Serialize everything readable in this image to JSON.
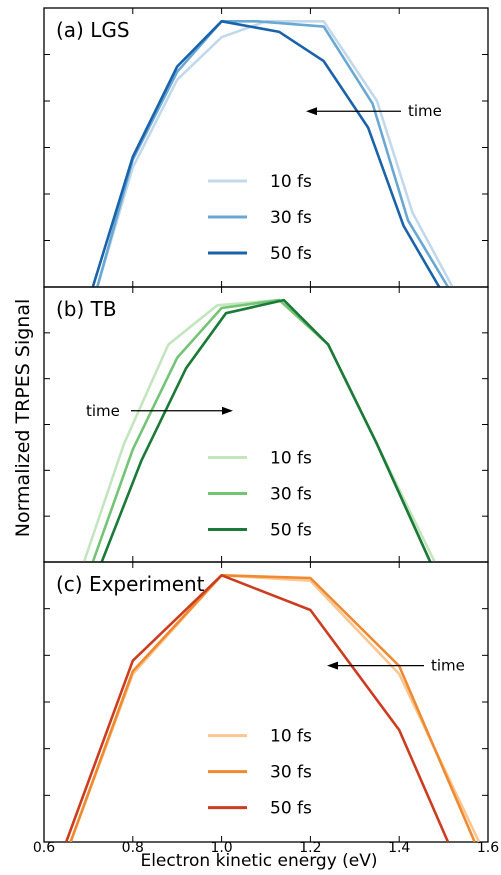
{
  "ylabel": "Normalized TRPES Signal",
  "xlabel": "Electron kinetic energy (eV)",
  "x_ticks": [
    "0.6",
    "0.8",
    "1.0",
    "1.2",
    "1.4",
    "1.6"
  ],
  "chart_data": [
    {
      "type": "line",
      "title": "(a) LGS",
      "xlim": [
        0.6,
        1.6
      ],
      "ylim": [
        0,
        1.05
      ],
      "legend": "center",
      "annotation": {
        "text": "time",
        "direction": "left"
      },
      "series": [
        {
          "name": "10 fs",
          "color": "#c2d9ec",
          "x": [
            0.72,
            0.8,
            0.9,
            1.0,
            1.1,
            1.23,
            1.35,
            1.43,
            1.52
          ],
          "y": [
            0.0,
            0.45,
            0.78,
            0.94,
            1.0,
            1.0,
            0.7,
            0.28,
            0.0
          ]
        },
        {
          "name": "30 fs",
          "color": "#6aa8d4",
          "x": [
            0.72,
            0.8,
            0.9,
            1.0,
            1.08,
            1.23,
            1.34,
            1.42,
            1.51
          ],
          "y": [
            0.0,
            0.48,
            0.81,
            1.0,
            1.0,
            0.98,
            0.69,
            0.25,
            0.0
          ]
        },
        {
          "name": "50 fs",
          "color": "#1a63aa",
          "x": [
            0.71,
            0.8,
            0.9,
            1.0,
            1.13,
            1.23,
            1.33,
            1.41,
            1.49
          ],
          "y": [
            0.0,
            0.49,
            0.83,
            1.0,
            0.96,
            0.85,
            0.6,
            0.23,
            0.0
          ]
        }
      ]
    },
    {
      "type": "line",
      "title": "(b) TB",
      "xlim": [
        0.6,
        1.6
      ],
      "ylim": [
        0,
        1.05
      ],
      "legend": "center",
      "annotation": {
        "text": "time",
        "direction": "right"
      },
      "series": [
        {
          "name": "10 fs",
          "color": "#c3e6bf",
          "x": [
            0.69,
            0.78,
            0.88,
            0.99,
            1.13,
            1.24,
            1.35,
            1.48
          ],
          "y": [
            0.0,
            0.45,
            0.83,
            0.98,
            1.0,
            0.83,
            0.45,
            0.0
          ]
        },
        {
          "name": "30 fs",
          "color": "#74c476",
          "x": [
            0.71,
            0.8,
            0.9,
            1.0,
            1.13,
            1.24,
            1.35,
            1.47
          ],
          "y": [
            0.0,
            0.43,
            0.78,
            0.97,
            1.0,
            0.83,
            0.45,
            0.0
          ]
        },
        {
          "name": "50 fs",
          "color": "#1b7a38",
          "x": [
            0.73,
            0.82,
            0.92,
            1.01,
            1.14,
            1.24,
            1.35,
            1.47
          ],
          "y": [
            0.0,
            0.39,
            0.74,
            0.95,
            1.0,
            0.83,
            0.45,
            0.0
          ]
        }
      ]
    },
    {
      "type": "line",
      "title": "(c) Experiment",
      "xlim": [
        0.6,
        1.6
      ],
      "ylim": [
        0,
        1.05
      ],
      "legend": "center",
      "annotation": {
        "text": "time",
        "direction": "left"
      },
      "series": [
        {
          "name": "10 fs",
          "color": "#fbc690",
          "x": [
            0.66,
            0.8,
            1.0,
            1.2,
            1.4,
            1.58
          ],
          "y": [
            0.0,
            0.63,
            1.0,
            0.98,
            0.63,
            0.0
          ]
        },
        {
          "name": "30 fs",
          "color": "#ef8a30",
          "x": [
            0.66,
            0.8,
            1.0,
            1.2,
            1.4,
            1.57
          ],
          "y": [
            0.0,
            0.64,
            1.0,
            0.99,
            0.66,
            0.0
          ]
        },
        {
          "name": "50 fs",
          "color": "#cc3d1f",
          "x": [
            0.65,
            0.8,
            1.0,
            1.2,
            1.4,
            1.51
          ],
          "y": [
            0.0,
            0.68,
            1.0,
            0.87,
            0.42,
            0.0
          ]
        }
      ]
    }
  ]
}
